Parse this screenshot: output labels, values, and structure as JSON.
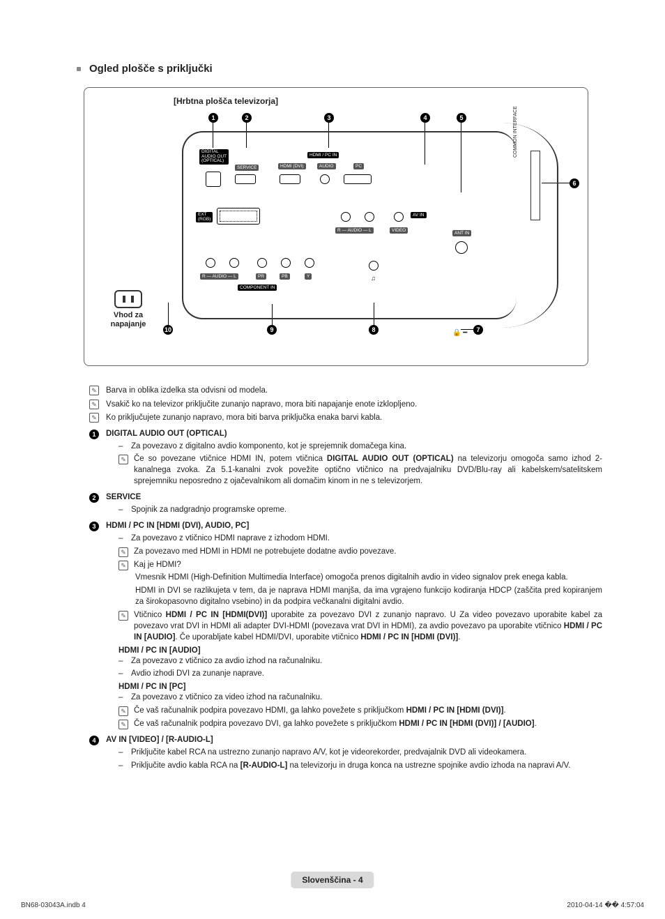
{
  "section_title": "Ogled plošče s priključki",
  "diagram": {
    "title": "[Hrbtna plošča televizorja]",
    "power_label": "Vhod za napajanje",
    "ci_label": "COMMON INTERFACE",
    "top_numbers": [
      "1",
      "2",
      "3",
      "4",
      "5"
    ],
    "right_number": "6",
    "bottom_numbers": [
      "10",
      "9",
      "8",
      "7"
    ],
    "port_labels": {
      "digital_audio": "DIGITAL\nAUDIO OUT\n(OPTICAL)",
      "service": "SERVICE",
      "hdmi_pc_in": "HDMI / PC IN",
      "hdmi_dvi": "HDMI (DVI)",
      "audio": "AUDIO",
      "pc": "PC",
      "ext_rgb": "EXT\n(RGB)",
      "av_in": "AV IN",
      "r_audio_l": "R — AUDIO — L",
      "video": "VIDEO",
      "ant_in": "ANT IN",
      "component_in": "COMPONENT IN",
      "pr": "PR",
      "pb": "PB",
      "y": "Y"
    },
    "kensington": "🔒 ━"
  },
  "intro_notes": [
    "Barva in oblika izdelka sta odvisni od modela.",
    "Vsakič ko na televizor priključite zunanjo napravo, mora biti napajanje enote izklopljeno.",
    "Ko priključujete zunanjo napravo, mora biti barva priključka enaka barvi kabla."
  ],
  "items": [
    {
      "num": "1",
      "title": "DIGITAL AUDIO OUT (OPTICAL)",
      "subs": [
        {
          "type": "dash",
          "text": "Za povezavo z digitalno avdio komponento, kot je sprejemnik domačega kina."
        },
        {
          "type": "note",
          "html": "Če so povezane vtičnice HDMI IN, potem vtičnica <b>DIGITAL AUDIO OUT (OPTICAL)</b> na televizorju omogoča samo izhod 2-kanalnega zvoka. Za 5.1-kanalni zvok povežite optično vtičnico na predvajalniku DVD/Blu-ray ali kabelskem/satelitskem sprejemniku neposredno z ojačevalnikom ali domačim kinom in ne s televizorjem."
        }
      ]
    },
    {
      "num": "2",
      "title": "SERVICE",
      "subs": [
        {
          "type": "dash",
          "text": "Spojnik za nadgradnjo programske opreme."
        }
      ]
    },
    {
      "num": "3",
      "title": "HDMI / PC IN [HDMI (DVI), AUDIO, PC]",
      "subs": [
        {
          "type": "dash",
          "text": "Za povezavo z vtičnico HDMI naprave z izhodom HDMI."
        },
        {
          "type": "note",
          "text": "Za povezavo med HDMI in HDMI ne potrebujete dodatne avdio povezave."
        },
        {
          "type": "note",
          "text": "Kaj je HDMI?"
        },
        {
          "type": "indent",
          "text": "Vmesnik HDMI (High-Definition Multimedia Interface) omogoča prenos digitalnih avdio in video signalov prek enega kabla."
        },
        {
          "type": "indent",
          "text": "HDMI in DVI se razlikujeta v tem, da je naprava HDMI manjša, da ima vgrajeno funkcijo kodiranja HDCP (zaščita pred kopiranjem za širokopasovno digitalno vsebino) in da podpira večkanalni digitalni avdio."
        },
        {
          "type": "note",
          "html": "Vtičnico <b>HDMI / PC IN [HDMI(DVI)]</b> uporabite za povezavo DVI z zunanjo napravo. U Za video povezavo uporabite kabel za povezavo vrat DVI in HDMI ali adapter DVI-HDMI (povezava vrat DVI in HDMI), za avdio povezavo pa uporabite vtičnico <b>HDMI / PC IN [AUDIO]</b>. Če uporabljate kabel HDMI/DVI, uporabite vtičnico <b>HDMI / PC IN [HDMI (DVI)]</b>."
        },
        {
          "type": "head",
          "text": "HDMI / PC IN [AUDIO]"
        },
        {
          "type": "dash",
          "text": "Za povezavo z vtičnico za avdio izhod na računalniku."
        },
        {
          "type": "dash",
          "text": "Avdio izhodi DVI za zunanje naprave."
        },
        {
          "type": "head",
          "text": "HDMI / PC IN [PC]"
        },
        {
          "type": "dash",
          "text": "Za povezavo z vtičnico za video izhod na računalniku."
        },
        {
          "type": "note",
          "html": "Če vaš računalnik podpira povezavo HDMI, ga lahko povežete s priključkom <b>HDMI / PC IN [HDMI (DVI)]</b>."
        },
        {
          "type": "note",
          "html": "Če vaš računalnik podpira povezavo DVI, ga lahko povežete s priključkom <b>HDMI / PC IN [HDMI (DVI)] / [AUDIO]</b>."
        }
      ]
    },
    {
      "num": "4",
      "title": "AV IN [VIDEO] / [R-AUDIO-L]",
      "subs": [
        {
          "type": "dash",
          "text": "Priključite kabel RCA na ustrezno zunanjo napravo A/V, kot je videorekorder, predvajalnik DVD ali videokamera."
        },
        {
          "type": "dash",
          "html": "Priključite avdio kabla RCA na <b>[R-AUDIO-L]</b> na televizorju in druga konca na ustrezne spojnike avdio izhoda na napravi A/V."
        }
      ]
    }
  ],
  "footer": {
    "lang": "Slovenščina - 4",
    "left": "BN68-03043A.indb   4",
    "right": "2010-04-14   �� 4:57:04"
  }
}
